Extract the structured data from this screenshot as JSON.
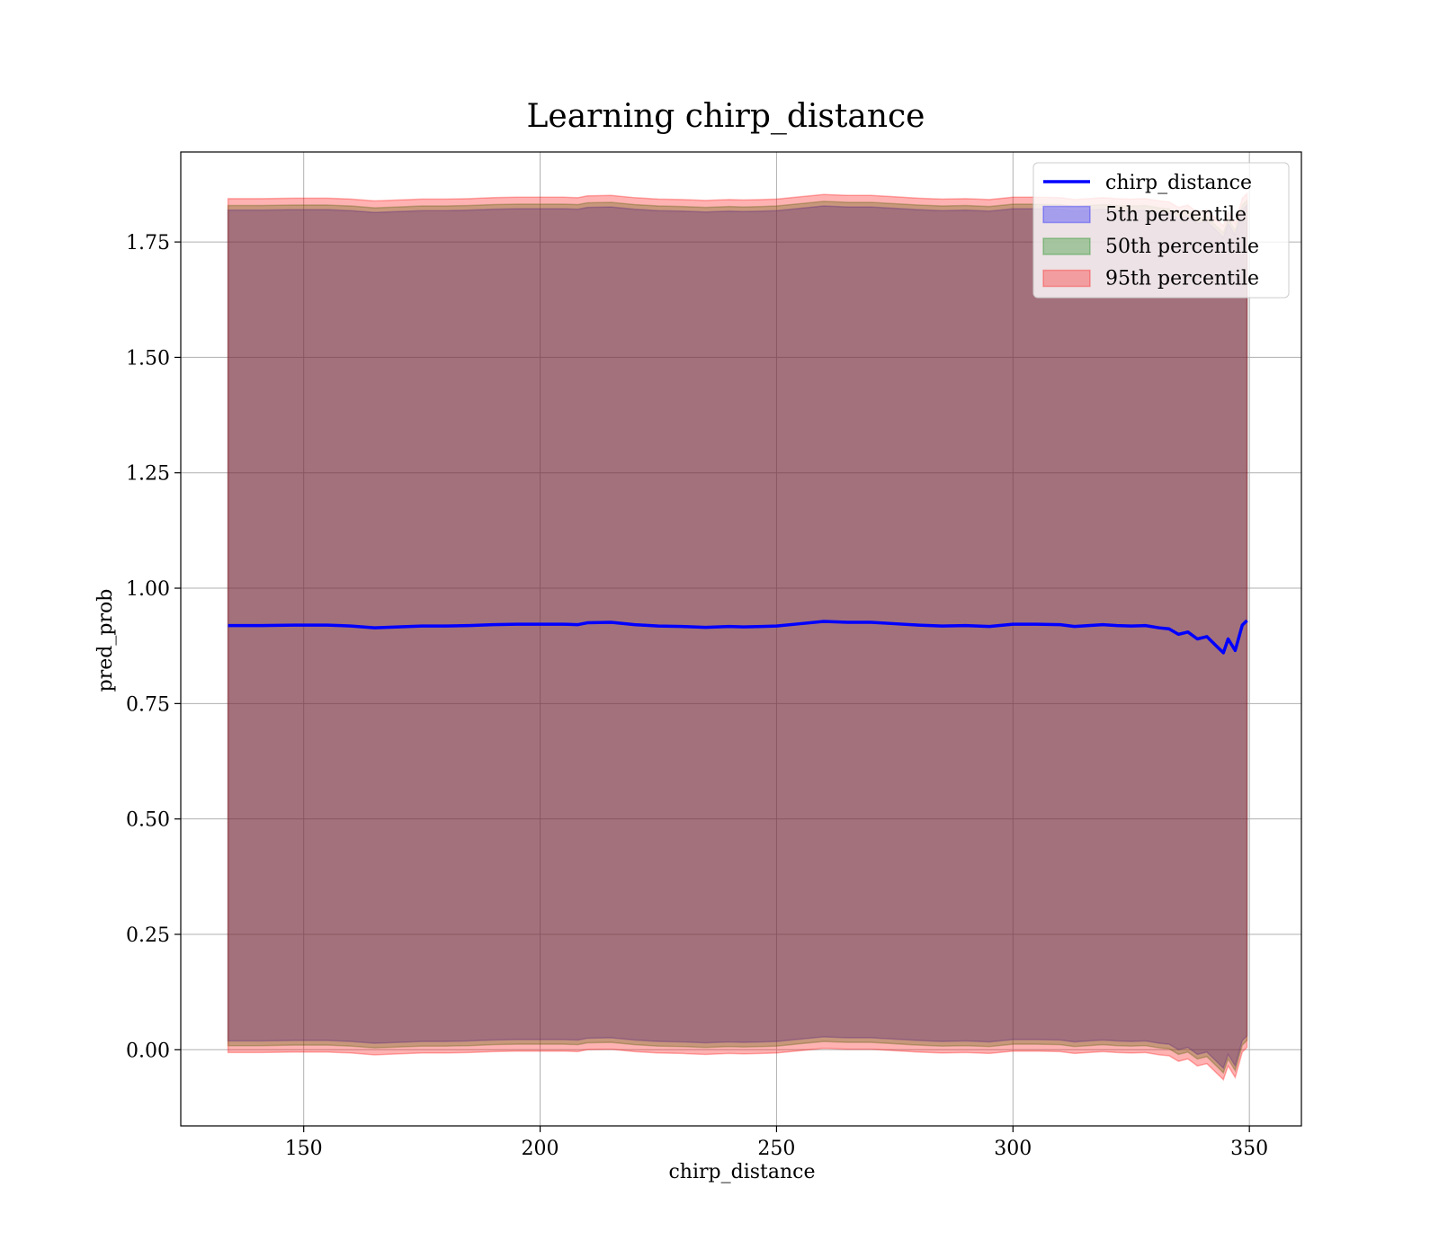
{
  "chart_data": {
    "type": "line",
    "title": "Learning chirp_distance",
    "xlabel": "chirp_distance",
    "ylabel": "pred_prob",
    "xlim": [
      124,
      361
    ],
    "ylim": [
      -0.165,
      1.945
    ],
    "x_ticks": [
      150,
      200,
      250,
      300,
      350
    ],
    "x_tick_labels": [
      "150",
      "200",
      "250",
      "300",
      "350"
    ],
    "y_ticks": [
      0.0,
      0.25,
      0.5,
      0.75,
      1.0,
      1.25,
      1.5,
      1.75
    ],
    "y_tick_labels": [
      "0.00",
      "0.25",
      "0.50",
      "0.75",
      "1.00",
      "1.25",
      "1.50",
      "1.75"
    ],
    "grid": true,
    "legend_position": "top-right",
    "x": [
      134,
      141,
      148,
      155,
      160,
      165,
      170,
      175,
      180,
      185,
      190,
      195,
      200,
      205,
      208,
      210,
      215,
      220,
      225,
      230,
      235,
      240,
      243,
      247,
      250,
      255,
      260,
      265,
      270,
      275,
      280,
      285,
      290,
      295,
      300,
      305,
      310,
      313,
      316,
      319,
      322,
      325,
      328,
      331,
      333,
      335,
      337,
      339,
      341,
      343,
      344.5,
      345.5,
      347,
      348.5,
      349.5
    ],
    "series": [
      {
        "name": "chirp_distance",
        "kind": "line",
        "color": "#0000ff",
        "values": [
          0.919,
          0.919,
          0.92,
          0.92,
          0.918,
          0.914,
          0.916,
          0.918,
          0.918,
          0.919,
          0.921,
          0.922,
          0.922,
          0.922,
          0.921,
          0.925,
          0.926,
          0.921,
          0.918,
          0.917,
          0.915,
          0.917,
          0.916,
          0.917,
          0.918,
          0.923,
          0.928,
          0.926,
          0.926,
          0.923,
          0.92,
          0.918,
          0.919,
          0.917,
          0.922,
          0.922,
          0.921,
          0.917,
          0.919,
          0.921,
          0.919,
          0.918,
          0.919,
          0.914,
          0.912,
          0.9,
          0.905,
          0.89,
          0.895,
          0.875,
          0.86,
          0.89,
          0.865,
          0.92,
          0.93
        ]
      },
      {
        "name": "5th percentile",
        "kind": "band",
        "color": "#0000ff",
        "lower": [
          0.019,
          0.019,
          0.02,
          0.02,
          0.018,
          0.014,
          0.016,
          0.018,
          0.018,
          0.019,
          0.021,
          0.022,
          0.022,
          0.022,
          0.021,
          0.025,
          0.026,
          0.021,
          0.018,
          0.017,
          0.015,
          0.017,
          0.016,
          0.017,
          0.018,
          0.023,
          0.028,
          0.026,
          0.026,
          0.023,
          0.02,
          0.018,
          0.019,
          0.017,
          0.022,
          0.022,
          0.021,
          0.017,
          0.019,
          0.021,
          0.019,
          0.018,
          0.019,
          0.014,
          0.012,
          0.0,
          0.005,
          -0.01,
          -0.005,
          -0.025,
          -0.04,
          -0.01,
          -0.035,
          0.02,
          0.03
        ],
        "upper": [
          1.819,
          1.819,
          1.82,
          1.82,
          1.818,
          1.814,
          1.816,
          1.818,
          1.818,
          1.819,
          1.821,
          1.822,
          1.822,
          1.822,
          1.821,
          1.825,
          1.826,
          1.821,
          1.818,
          1.817,
          1.815,
          1.817,
          1.816,
          1.817,
          1.818,
          1.823,
          1.828,
          1.826,
          1.826,
          1.823,
          1.82,
          1.818,
          1.819,
          1.817,
          1.822,
          1.822,
          1.821,
          1.817,
          1.819,
          1.821,
          1.819,
          1.818,
          1.819,
          1.814,
          1.812,
          1.8,
          1.805,
          1.79,
          1.795,
          1.775,
          1.76,
          1.79,
          1.765,
          1.82,
          1.83
        ]
      },
      {
        "name": "50th percentile",
        "kind": "band",
        "color": "#008000",
        "lower": [
          0.009,
          0.009,
          0.01,
          0.01,
          0.008,
          0.004,
          0.006,
          0.008,
          0.008,
          0.009,
          0.011,
          0.012,
          0.012,
          0.012,
          0.011,
          0.015,
          0.016,
          0.011,
          0.008,
          0.007,
          0.005,
          0.007,
          0.006,
          0.007,
          0.008,
          0.013,
          0.018,
          0.016,
          0.016,
          0.013,
          0.01,
          0.008,
          0.009,
          0.007,
          0.012,
          0.012,
          0.011,
          0.007,
          0.009,
          0.011,
          0.009,
          0.008,
          0.009,
          0.004,
          0.002,
          -0.01,
          -0.005,
          -0.02,
          -0.015,
          -0.035,
          -0.05,
          -0.02,
          -0.045,
          0.01,
          0.02
        ],
        "upper": [
          1.829,
          1.829,
          1.83,
          1.83,
          1.828,
          1.824,
          1.826,
          1.828,
          1.828,
          1.829,
          1.831,
          1.832,
          1.832,
          1.832,
          1.831,
          1.835,
          1.836,
          1.831,
          1.828,
          1.827,
          1.825,
          1.827,
          1.826,
          1.827,
          1.828,
          1.833,
          1.838,
          1.836,
          1.836,
          1.833,
          1.83,
          1.828,
          1.829,
          1.827,
          1.832,
          1.832,
          1.831,
          1.827,
          1.829,
          1.831,
          1.829,
          1.828,
          1.829,
          1.824,
          1.822,
          1.81,
          1.815,
          1.8,
          1.805,
          1.785,
          1.77,
          1.8,
          1.775,
          1.83,
          1.84
        ]
      },
      {
        "name": "95th percentile",
        "kind": "band",
        "color": "#ff0000",
        "lower": [
          -0.006,
          -0.006,
          -0.005,
          -0.005,
          -0.007,
          -0.011,
          -0.009,
          -0.007,
          -0.007,
          -0.006,
          -0.004,
          -0.003,
          -0.003,
          -0.003,
          -0.004,
          0.0,
          0.001,
          -0.004,
          -0.007,
          -0.008,
          -0.01,
          -0.008,
          -0.009,
          -0.008,
          -0.007,
          -0.002,
          0.003,
          0.001,
          0.001,
          -0.002,
          -0.005,
          -0.007,
          -0.006,
          -0.008,
          -0.003,
          -0.003,
          -0.004,
          -0.008,
          -0.006,
          -0.004,
          -0.006,
          -0.007,
          -0.006,
          -0.011,
          -0.013,
          -0.025,
          -0.02,
          -0.035,
          -0.03,
          -0.05,
          -0.065,
          -0.035,
          -0.06,
          -0.005,
          0.005
        ],
        "upper": [
          1.844,
          1.844,
          1.845,
          1.845,
          1.843,
          1.839,
          1.841,
          1.843,
          1.843,
          1.844,
          1.846,
          1.847,
          1.847,
          1.847,
          1.846,
          1.85,
          1.851,
          1.846,
          1.843,
          1.842,
          1.84,
          1.842,
          1.841,
          1.842,
          1.843,
          1.848,
          1.853,
          1.851,
          1.851,
          1.848,
          1.845,
          1.843,
          1.844,
          1.842,
          1.847,
          1.847,
          1.846,
          1.842,
          1.844,
          1.846,
          1.844,
          1.843,
          1.844,
          1.839,
          1.837,
          1.825,
          1.83,
          1.815,
          1.82,
          1.8,
          1.785,
          1.815,
          1.79,
          1.845,
          1.855
        ]
      }
    ],
    "legend": [
      {
        "label": "chirp_distance",
        "kind": "line",
        "color": "#0000ff"
      },
      {
        "label": "5th percentile",
        "kind": "band",
        "color": "#0000ff"
      },
      {
        "label": "50th percentile",
        "kind": "band",
        "color": "#008000"
      },
      {
        "label": "95th percentile",
        "kind": "band",
        "color": "#ff0000"
      }
    ]
  }
}
